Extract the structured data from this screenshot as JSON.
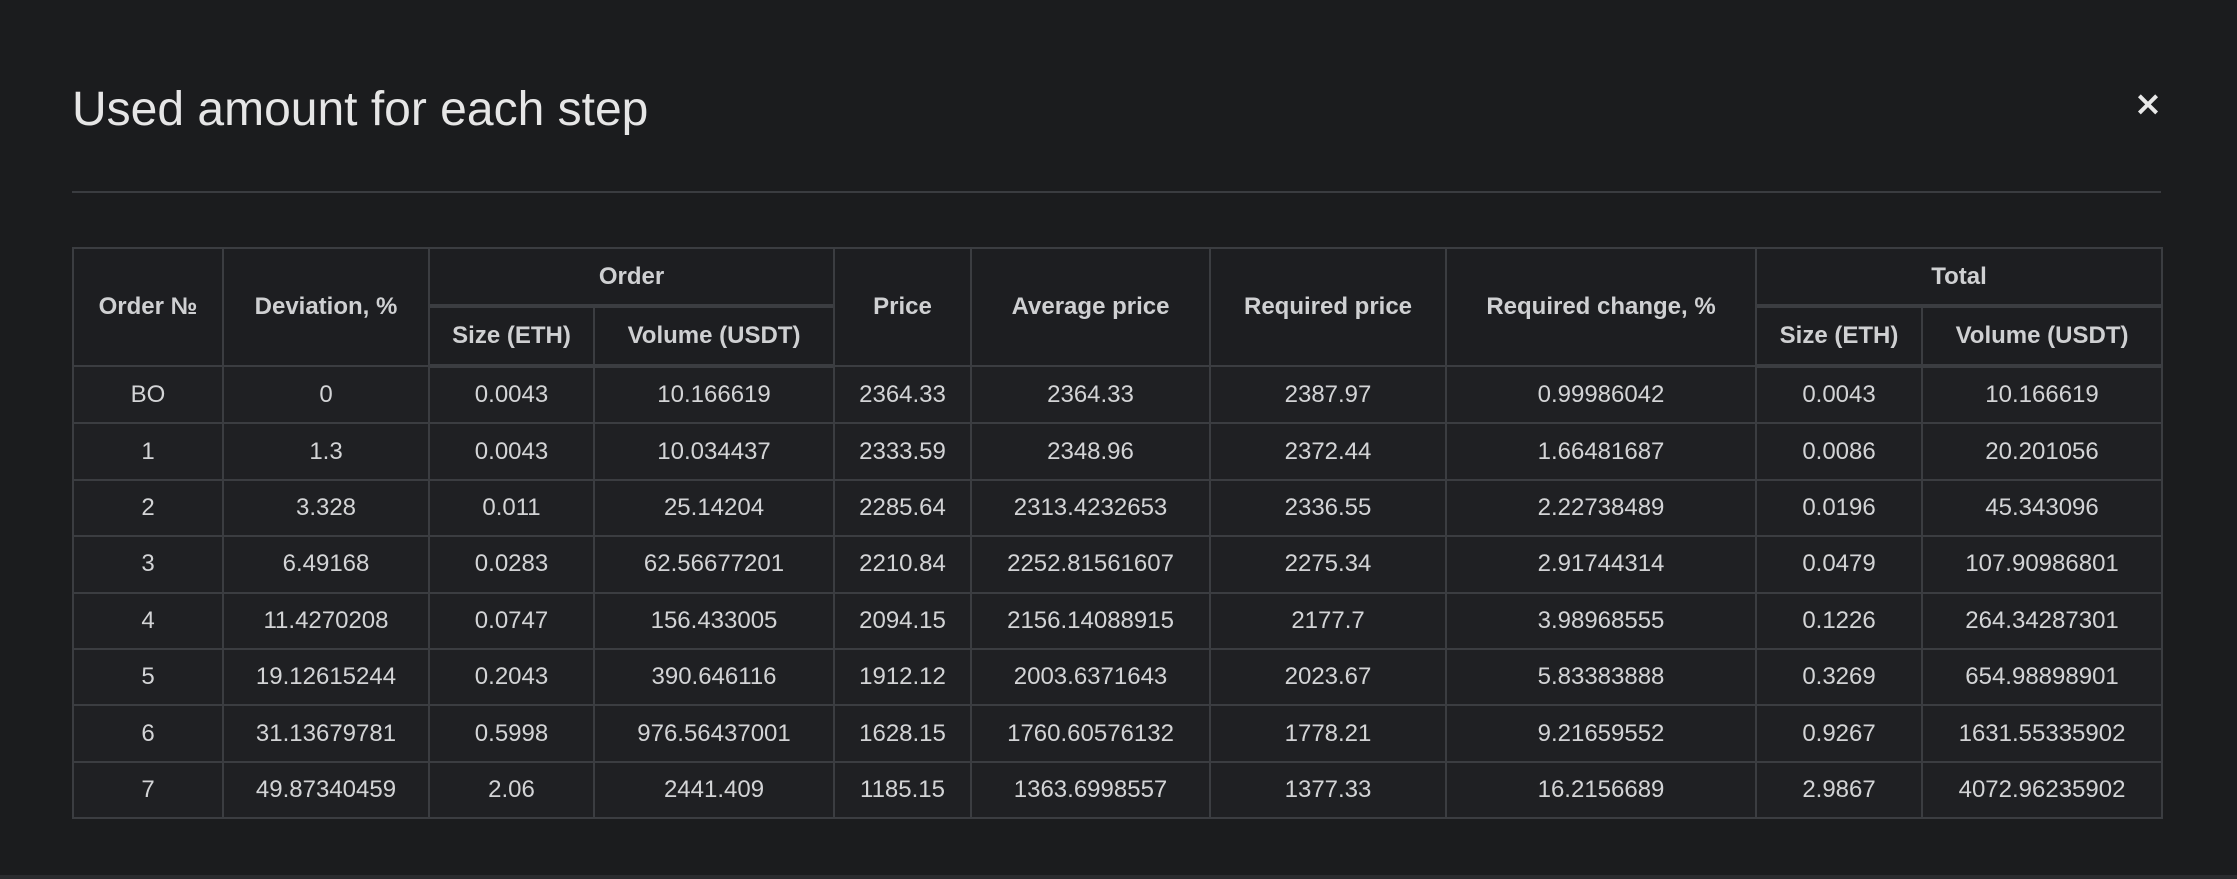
{
  "modal": {
    "title": "Used amount for each step",
    "close_label": "×"
  },
  "table": {
    "headers": {
      "order_no": "Order №",
      "deviation": "Deviation, %",
      "order_group": "Order",
      "order_size": "Size (ETH)",
      "order_volume": "Volume (USDT)",
      "price": "Price",
      "average_price": "Average price",
      "required_price": "Required price",
      "required_change": "Required change, %",
      "total_group": "Total",
      "total_size": "Size (ETH)",
      "total_volume": "Volume (USDT)"
    },
    "rows": [
      [
        "BO",
        "0",
        "0.0043",
        "10.166619",
        "2364.33",
        "2364.33",
        "2387.97",
        "0.99986042",
        "0.0043",
        "10.166619"
      ],
      [
        "1",
        "1.3",
        "0.0043",
        "10.034437",
        "2333.59",
        "2348.96",
        "2372.44",
        "1.66481687",
        "0.0086",
        "20.201056"
      ],
      [
        "2",
        "3.328",
        "0.011",
        "25.14204",
        "2285.64",
        "2313.4232653",
        "2336.55",
        "2.22738489",
        "0.0196",
        "45.343096"
      ],
      [
        "3",
        "6.49168",
        "0.0283",
        "62.56677201",
        "2210.84",
        "2252.81561607",
        "2275.34",
        "2.91744314",
        "0.0479",
        "107.90986801"
      ],
      [
        "4",
        "11.4270208",
        "0.0747",
        "156.433005",
        "2094.15",
        "2156.14088915",
        "2177.7",
        "3.98968555",
        "0.1226",
        "264.34287301"
      ],
      [
        "5",
        "19.12615244",
        "0.2043",
        "390.646116",
        "1912.12",
        "2003.6371643",
        "2023.67",
        "5.83383888",
        "0.3269",
        "654.98898901"
      ],
      [
        "6",
        "31.13679781",
        "0.5998",
        "976.56437001",
        "1628.15",
        "1760.60576132",
        "1778.21",
        "9.21659552",
        "0.9267",
        "1631.55335902"
      ],
      [
        "7",
        "49.87340459",
        "2.06",
        "2441.409",
        "1185.15",
        "1363.6998557",
        "1377.33",
        "16.2156689",
        "2.9867",
        "4072.96235902"
      ]
    ]
  }
}
